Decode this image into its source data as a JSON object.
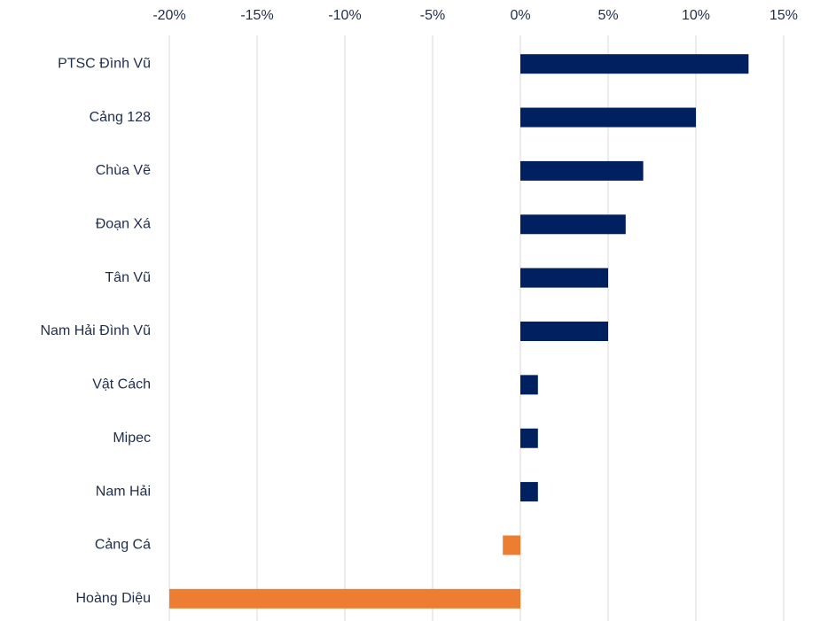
{
  "chart_data": {
    "type": "barh",
    "categories": [
      "PTSC Đình Vũ",
      "Cảng 128",
      "Chùa Vẽ",
      "Đoạn Xá",
      "Tân Vũ",
      "Nam Hải Đình Vũ",
      "Vật Cách",
      "Mipec",
      "Nam Hải",
      "Cảng Cá",
      "Hoàng Diệu"
    ],
    "values": [
      13,
      10,
      7,
      6,
      5,
      5,
      1,
      1,
      1,
      -1,
      -20
    ],
    "color": "#002060",
    "negative_color": "#ED7D31",
    "xlim": [
      -20,
      15
    ],
    "xticks": [
      {
        "value": -20,
        "label": "-20%"
      },
      {
        "value": -15,
        "label": "-15%"
      },
      {
        "value": -10,
        "label": "-10%"
      },
      {
        "value": -5,
        "label": "-5%"
      },
      {
        "value": 0,
        "label": "0%"
      },
      {
        "value": 5,
        "label": "5%"
      },
      {
        "value": 10,
        "label": "10%"
      },
      {
        "value": 15,
        "label": "15%"
      }
    ],
    "grid": true
  }
}
